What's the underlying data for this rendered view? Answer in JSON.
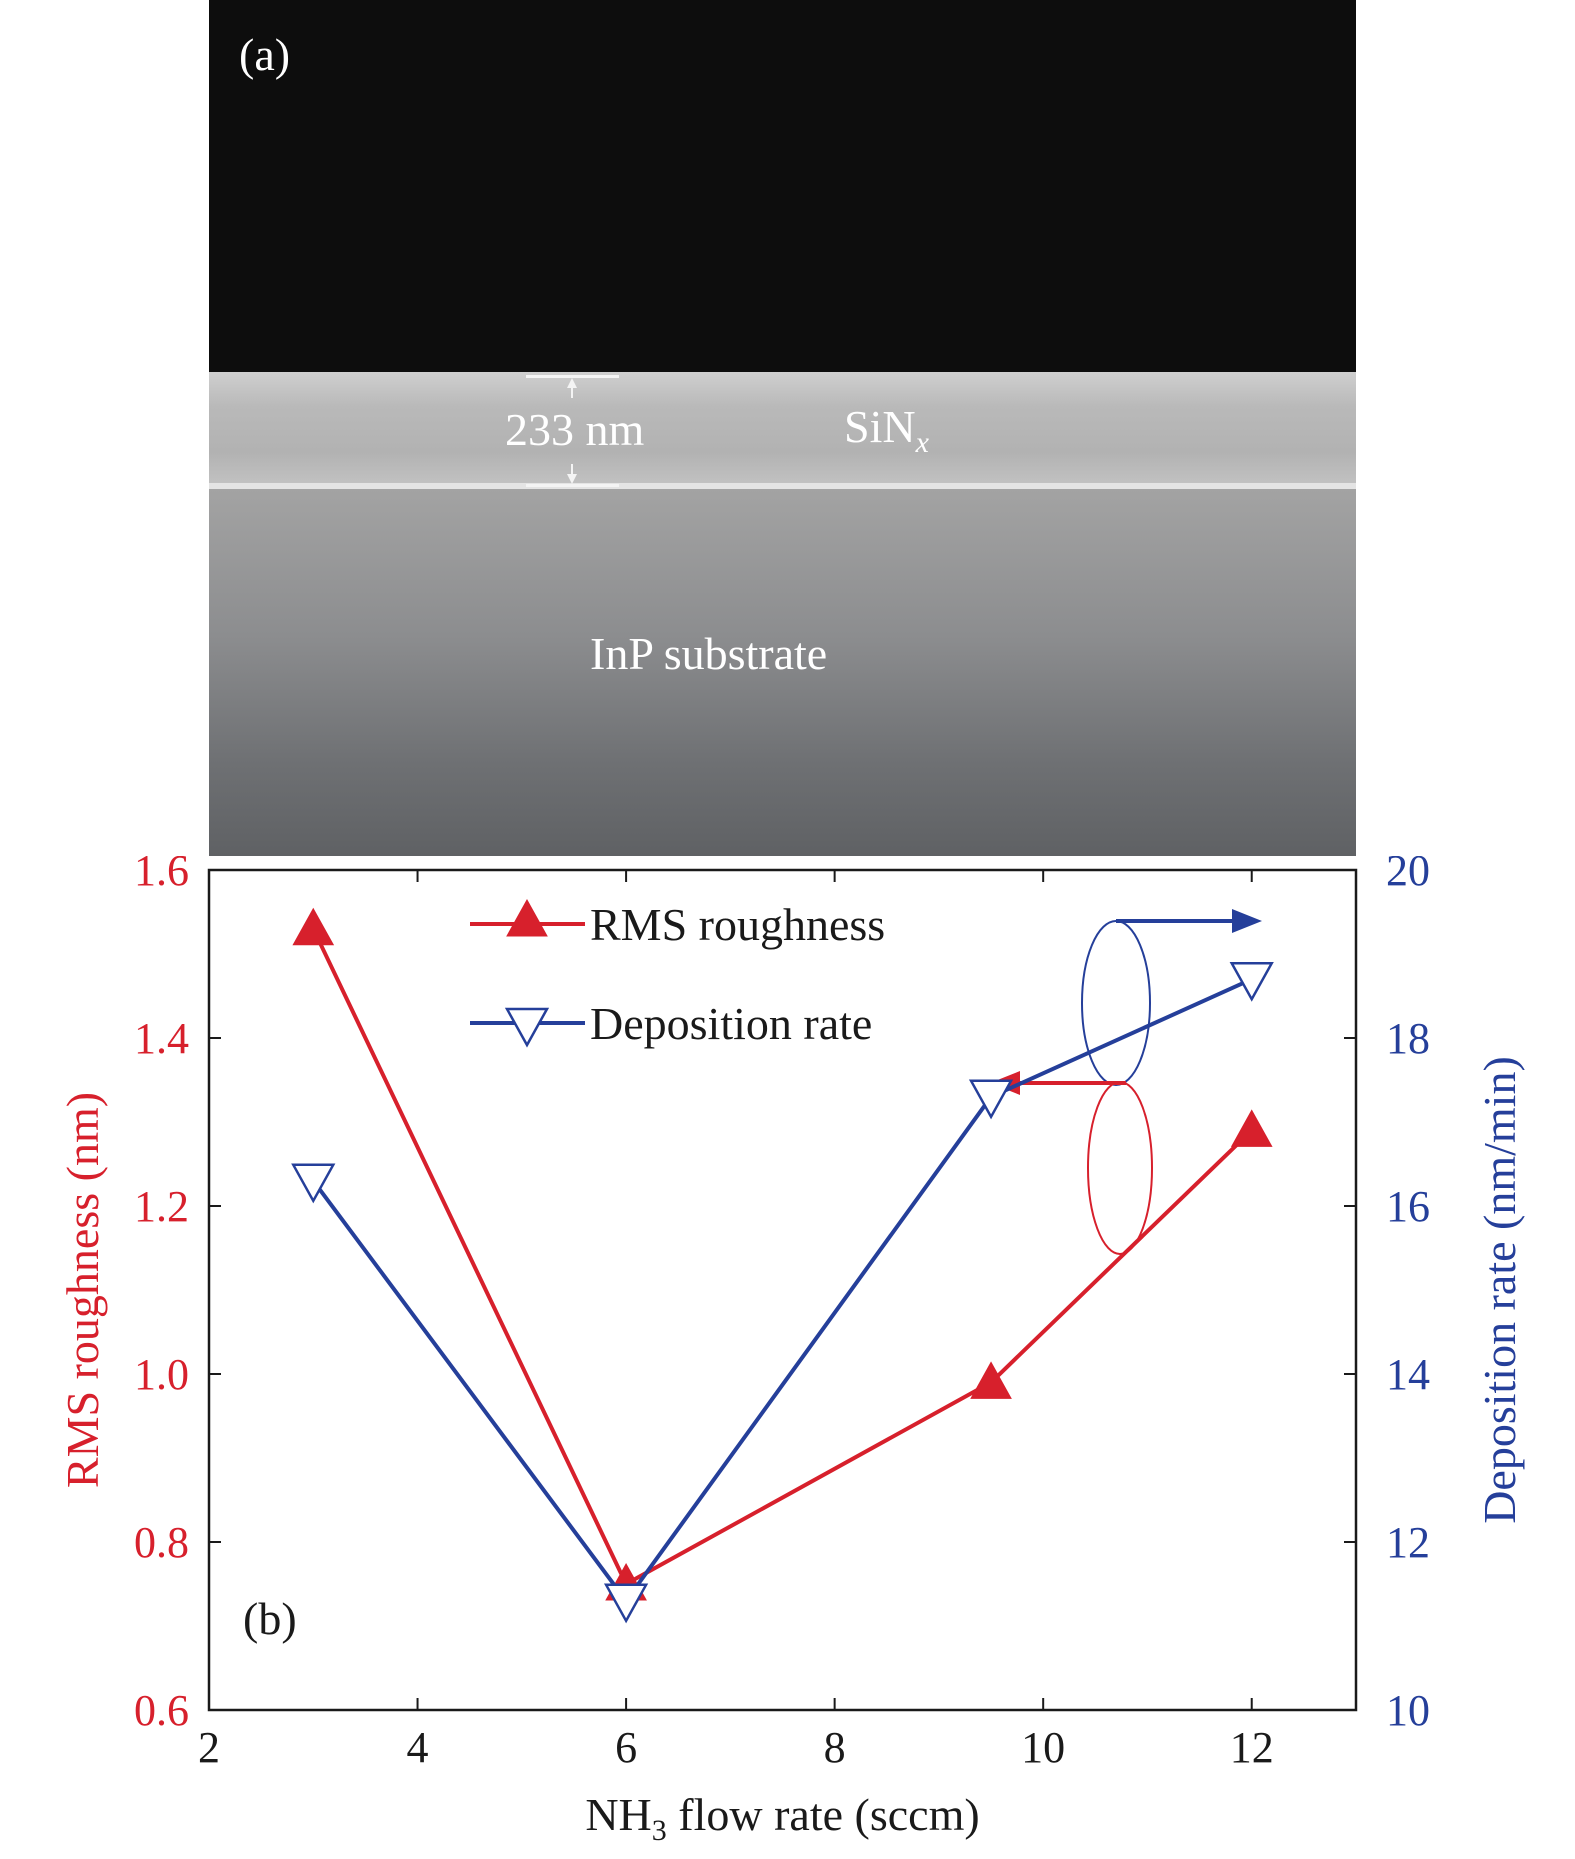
{
  "panel_a": {
    "label": "(a)",
    "thickness_label": "233 nm",
    "film_label_main": "SiN",
    "film_label_sub": "x",
    "substrate_label": "InP substrate"
  },
  "colors": {
    "red": "#d7202c",
    "blue": "#253f9a",
    "axis": "#1a1a1a"
  },
  "chart_data": {
    "type": "line",
    "panel_label": "(b)",
    "xlabel_main": "NH",
    "xlabel_sub": "3",
    "xlabel_rest": " flow rate (sccm)",
    "ylabel_left": "RMS roughness (nm)",
    "ylabel_right": "Deposition rate (nm/min)",
    "xlim": [
      2,
      13
    ],
    "ylim_left": [
      0.6,
      1.6
    ],
    "ylim_right": [
      10,
      20
    ],
    "xticks": [
      2,
      4,
      6,
      8,
      10,
      12
    ],
    "yticks_left": [
      "0.6",
      "0.8",
      "1.0",
      "1.2",
      "1.4",
      "1.6"
    ],
    "yticks_right": [
      "10",
      "12",
      "14",
      "16",
      "18",
      "20"
    ],
    "legend_position": "top-center",
    "series": [
      {
        "name": "RMS roughness",
        "axis": "left",
        "marker": "filled-triangle-up",
        "x": [
          3,
          6,
          9.5,
          12
        ],
        "y": [
          1.53,
          0.75,
          0.99,
          1.29
        ]
      },
      {
        "name": "Deposition rate",
        "axis": "right",
        "marker": "open-triangle-down",
        "x": [
          3,
          6,
          9.5,
          12
        ],
        "y": [
          16.3,
          11.3,
          17.3,
          18.7
        ]
      }
    ]
  }
}
